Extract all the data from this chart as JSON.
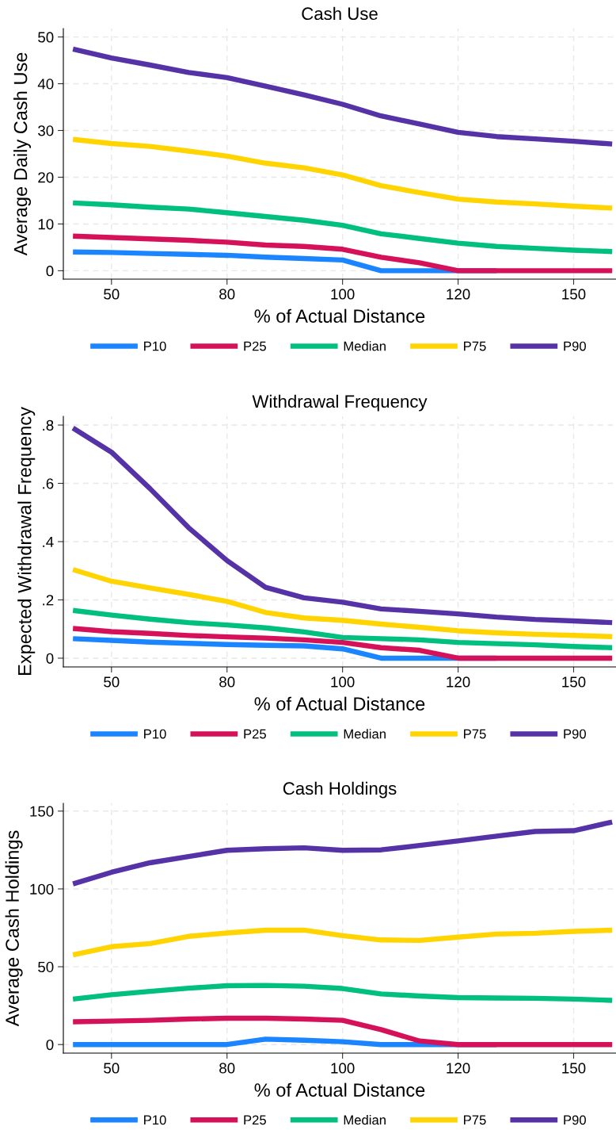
{
  "chart_data": [
    {
      "type": "line",
      "title": "Cash Use",
      "xlabel": "% of Actual Distance",
      "ylabel": "Average Daily Cash Use",
      "categories": [
        null,
        "50",
        null,
        null,
        "80",
        null,
        null,
        "100",
        null,
        null,
        "120",
        null,
        null,
        "150",
        null
      ],
      "ylim": [
        -1.8,
        51.8
      ],
      "yticks": [
        0,
        10,
        20,
        30,
        40,
        50
      ],
      "grid": true,
      "legend": "bottom",
      "line_style": "solid",
      "series": [
        {
          "name": "P10",
          "color": "#1a85ff",
          "values": [
            4.0,
            3.9,
            3.7,
            3.5,
            3.3,
            2.9,
            2.6,
            2.3,
            0,
            0,
            0,
            0,
            null,
            null,
            null
          ]
        },
        {
          "name": "P25",
          "color": "#d51159",
          "values": [
            7.4,
            7.1,
            6.8,
            6.5,
            6.1,
            5.5,
            5.2,
            4.6,
            2.9,
            1.7,
            0,
            0,
            0,
            0,
            0
          ]
        },
        {
          "name": "Median",
          "color": "#00bf7f",
          "values": [
            14.5,
            14.1,
            13.6,
            13.2,
            12.4,
            11.6,
            10.8,
            9.7,
            7.9,
            6.9,
            5.9,
            5.2,
            4.8,
            4.4,
            4.1
          ]
        },
        {
          "name": "P75",
          "color": "#ffd400",
          "values": [
            28.1,
            27.2,
            26.6,
            25.6,
            24.5,
            23.0,
            22.0,
            20.5,
            18.2,
            16.7,
            15.3,
            14.7,
            14.3,
            13.8,
            13.4
          ]
        },
        {
          "name": "P90",
          "color": "#5632a7",
          "values": [
            47.4,
            45.5,
            44.0,
            42.4,
            41.3,
            39.5,
            37.6,
            35.6,
            33.1,
            31.4,
            29.6,
            28.7,
            28.2,
            27.7,
            27.1
          ]
        }
      ]
    },
    {
      "type": "line",
      "title": "Withdrawal Frequency",
      "xlabel": "% of Actual Distance",
      "ylabel": "Expected Withdrawal Frequency",
      "categories": [
        null,
        "50",
        null,
        null,
        "80",
        null,
        null,
        "100",
        null,
        null,
        "120",
        null,
        null,
        "150",
        null
      ],
      "ylim": [
        -0.03,
        0.83
      ],
      "yticks": [
        0,
        {
          "value": 0.2,
          "label": ".2"
        },
        {
          "value": 0.4,
          "label": ".4"
        },
        {
          "value": 0.6,
          "label": ".6"
        },
        {
          "value": 0.8,
          "label": ".8"
        }
      ],
      "grid": true,
      "legend": "bottom",
      "line_style": "solid",
      "series": [
        {
          "name": "P10",
          "color": "#1a85ff",
          "values": [
            0.067,
            0.061,
            0.055,
            0.051,
            0.047,
            0.044,
            0.042,
            0.032,
            0,
            0,
            0,
            0,
            null,
            null,
            null
          ]
        },
        {
          "name": "P25",
          "color": "#d51159",
          "values": [
            0.102,
            0.091,
            0.085,
            0.078,
            0.073,
            0.069,
            0.063,
            0.054,
            0.036,
            0.027,
            0,
            0,
            0,
            0,
            0
          ]
        },
        {
          "name": "Median",
          "color": "#00bf7f",
          "values": [
            0.164,
            0.148,
            0.134,
            0.122,
            0.114,
            0.104,
            0.09,
            0.071,
            0.067,
            0.063,
            0.054,
            0.05,
            0.046,
            0.04,
            0.036
          ]
        },
        {
          "name": "P75",
          "color": "#ffd400",
          "values": [
            0.304,
            0.264,
            0.241,
            0.219,
            0.195,
            0.157,
            0.138,
            0.13,
            0.117,
            0.106,
            0.094,
            0.087,
            0.082,
            0.078,
            0.074
          ]
        },
        {
          "name": "P90",
          "color": "#5632a7",
          "values": [
            0.79,
            0.707,
            0.582,
            0.448,
            0.335,
            0.243,
            0.207,
            0.192,
            0.169,
            0.161,
            0.152,
            0.141,
            0.133,
            0.128,
            0.122
          ]
        }
      ]
    },
    {
      "type": "line",
      "title": "Cash Holdings",
      "xlabel": "% of Actual Distance",
      "ylabel": "Average Cash Holdings",
      "categories": [
        null,
        "50",
        null,
        null,
        "80",
        null,
        null,
        "100",
        null,
        null,
        "120",
        null,
        null,
        "150",
        null
      ],
      "ylim": [
        -5.5,
        155
      ],
      "yticks": [
        0,
        50,
        100,
        150
      ],
      "grid": true,
      "legend": "bottom",
      "line_style": "solid",
      "series": [
        {
          "name": "P10",
          "color": "#1a85ff",
          "values": [
            0,
            0,
            0,
            0,
            0,
            3.5,
            2.8,
            1.8,
            0,
            0,
            0,
            0,
            null,
            null,
            null
          ]
        },
        {
          "name": "P25",
          "color": "#d51159",
          "values": [
            14.6,
            15.1,
            15.6,
            16.4,
            16.9,
            16.9,
            16.4,
            15.6,
            9.6,
            2.3,
            0,
            0,
            0,
            0,
            0
          ]
        },
        {
          "name": "Median",
          "color": "#00bf7f",
          "values": [
            29.2,
            32.0,
            34.2,
            36.2,
            37.8,
            38.0,
            37.5,
            36.0,
            32.5,
            31.2,
            30.2,
            29.9,
            29.7,
            29.2,
            28.4
          ]
        },
        {
          "name": "P75",
          "color": "#ffd400",
          "values": [
            57.6,
            62.9,
            64.9,
            69.5,
            71.7,
            73.5,
            73.5,
            70.0,
            67.2,
            66.9,
            69.0,
            71.0,
            71.5,
            72.7,
            73.5
          ]
        },
        {
          "name": "P90",
          "color": "#5632a7",
          "values": [
            103.2,
            110.7,
            116.8,
            120.8,
            124.8,
            125.8,
            126.4,
            124.8,
            125.1,
            127.9,
            130.9,
            133.9,
            136.9,
            137.4,
            143.0
          ]
        }
      ]
    }
  ]
}
